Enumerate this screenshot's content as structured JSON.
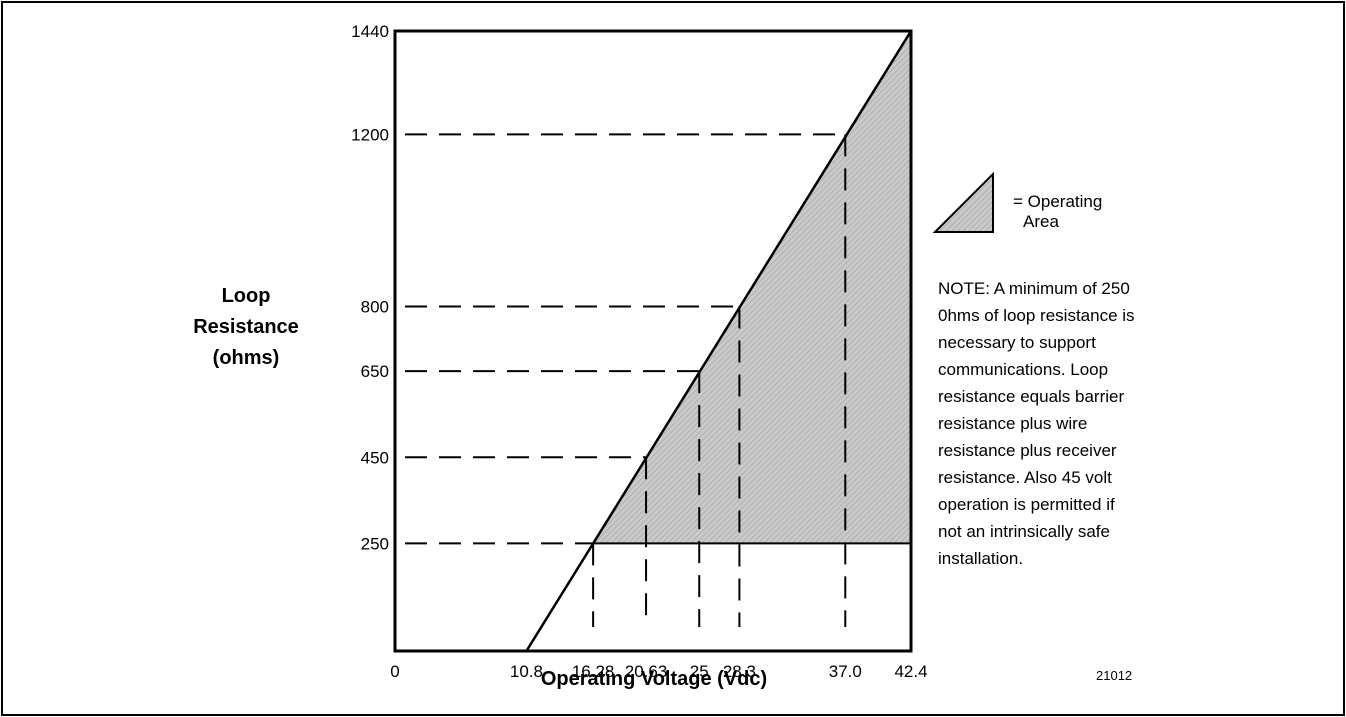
{
  "chart_data": {
    "type": "area",
    "xlabel": "Operating Voltage (Vdc)",
    "ylabel": [
      "Loop",
      "Resistance",
      "(ohms)"
    ],
    "xlim": [
      0,
      42.4
    ],
    "ylim": [
      0,
      1440
    ],
    "x_ticks": [
      "0",
      "10.8",
      "16.28",
      "20.63",
      "25",
      "28.3",
      "37.0",
      "42.4"
    ],
    "x_tick_values": [
      0,
      10.8,
      16.28,
      20.63,
      25,
      28.3,
      37.0,
      42.4
    ],
    "y_ticks": [
      "250",
      "450",
      "650",
      "800",
      "1200",
      "1440"
    ],
    "y_tick_values": [
      250,
      450,
      650,
      800,
      1200,
      1440
    ],
    "line": {
      "x": [
        10.8,
        42.4
      ],
      "y": [
        0,
        1440
      ]
    },
    "operating_area": {
      "min_resistance": 250,
      "max_voltage": 42.4
    },
    "reference_points": [
      {
        "x": 16.28,
        "y": 250
      },
      {
        "x": 20.63,
        "y": 450
      },
      {
        "x": 25,
        "y": 650
      },
      {
        "x": 28.3,
        "y": 800
      },
      {
        "x": 37.0,
        "y": 1200
      }
    ],
    "legend": {
      "label_lines": [
        "= Operating",
        "Area"
      ],
      "position": "right"
    },
    "note_lines": [
      "NOTE: A minimum of 250",
      "0hms of loop resistance is",
      "necessary to support",
      "communications. Loop",
      "resistance equals barrier",
      "resistance plus wire",
      "resistance plus receiver",
      "resistance. Also 45 volt",
      "operation is permitted if",
      "not an intrinsically safe",
      "installation."
    ],
    "figure_id": "21012",
    "colors": {
      "fill": "#c8c8c8",
      "line": "#000000"
    }
  }
}
